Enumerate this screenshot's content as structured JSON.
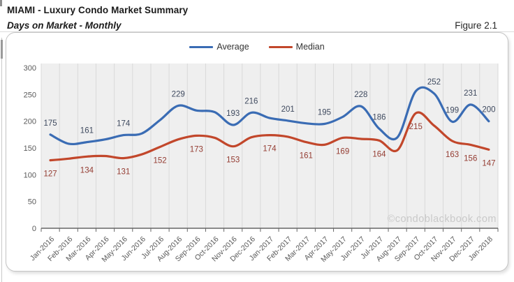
{
  "header": {
    "title": "MIAMI - Luxury Condo Market Summary",
    "subtitle": "Days on Market - Monthly",
    "figure_label": "Figure 2.1"
  },
  "watermark": "©condoblackbook.com",
  "chart_data": {
    "type": "line",
    "smooth": true,
    "grid": "vertical",
    "legend_position": "top-center",
    "x": [
      "Jan-2016",
      "Feb-2016",
      "Mar-2016",
      "Apr-2016",
      "May-2016",
      "Jun-2016",
      "Jul-2016",
      "Aug-2016",
      "Sep-2016",
      "Oct-2016",
      "Nov-2016",
      "Dec-2016",
      "Jan-2017",
      "Feb-2017",
      "Mar-2017",
      "Apr-2017",
      "May-2017",
      "Jun-2017",
      "Jul-2017",
      "Aug-2017",
      "Sep-2017",
      "Oct-2017",
      "Nov-2017",
      "Dec-2017",
      "Jan-2018"
    ],
    "ylim": [
      0,
      300
    ],
    "yticks": [
      0,
      50,
      100,
      150,
      200,
      250,
      300
    ],
    "series": [
      {
        "name": "Average",
        "color": "#3a6cb4",
        "label_color": "#3f4a5f",
        "label_side": "above",
        "values": [
          175,
          158,
          161,
          166,
          174,
          177,
          202,
          229,
          220,
          217,
          193,
          216,
          206,
          201,
          196,
          195,
          208,
          228,
          186,
          170,
          256,
          252,
          199,
          231,
          200
        ],
        "labeled_indices": [
          0,
          2,
          4,
          7,
          10,
          11,
          13,
          15,
          17,
          18,
          21,
          22,
          23,
          24
        ]
      },
      {
        "name": "Median",
        "color": "#c2472b",
        "label_color": "#943c32",
        "label_side": "below",
        "values": [
          127,
          130,
          134,
          135,
          131,
          138,
          152,
          166,
          173,
          169,
          153,
          170,
          174,
          171,
          161,
          156,
          169,
          167,
          164,
          146,
          215,
          192,
          163,
          156,
          147
        ],
        "labeled_indices": [
          0,
          2,
          4,
          6,
          8,
          10,
          12,
          14,
          16,
          18,
          20,
          22,
          23,
          24
        ]
      }
    ],
    "colors": {
      "plot_bg": "#efefef",
      "gridline": "#d9d9d9",
      "axis_line": "#666666",
      "tick_text": "#595959",
      "watermark_text": "#c9c9c9"
    }
  }
}
